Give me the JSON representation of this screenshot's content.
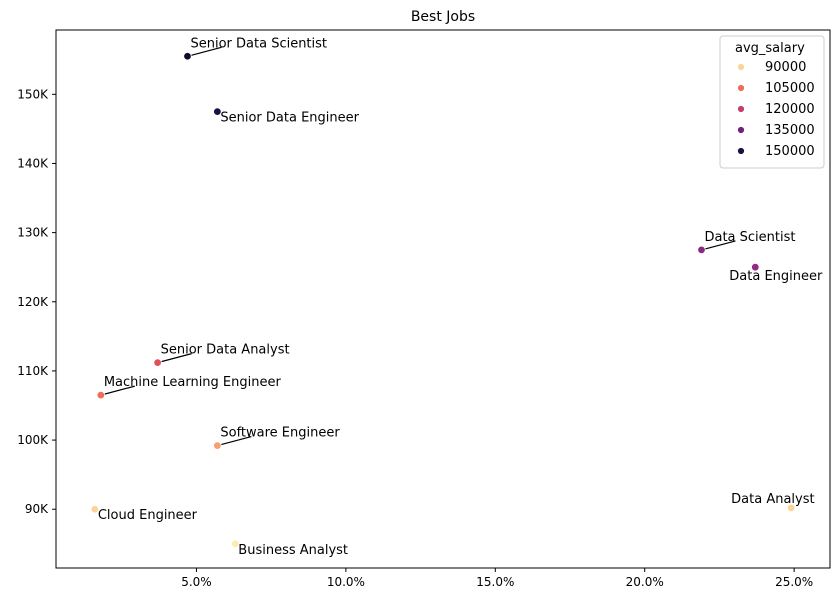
{
  "chart_data": {
    "type": "scatter",
    "title": "Best Jobs",
    "xlabel": "",
    "ylabel": "",
    "x_unit": "percent",
    "xlim": [
      0.3,
      26.2
    ],
    "ylim": [
      81500,
      159300
    ],
    "x_ticks": [
      5,
      10,
      15,
      20,
      25
    ],
    "x_tick_labels": [
      "5.0%",
      "10.0%",
      "15.0%",
      "20.0%",
      "25.0%"
    ],
    "y_ticks": [
      90000,
      100000,
      110000,
      120000,
      130000,
      140000,
      150000
    ],
    "y_tick_labels": [
      "90K",
      "100K",
      "110K",
      "120K",
      "130K",
      "140K",
      "150K"
    ],
    "grid": false,
    "legend": {
      "title": "avg_salary",
      "placement": "top-right",
      "entries": [
        {
          "label": "90000",
          "color": "#fcd49a"
        },
        {
          "label": "105000",
          "color": "#ef6e58"
        },
        {
          "label": "120000",
          "color": "#c33f72"
        },
        {
          "label": "135000",
          "color": "#711f81"
        },
        {
          "label": "150000",
          "color": "#1a1042"
        }
      ]
    },
    "points": [
      {
        "label": "Senior Data Scientist",
        "x": 4.7,
        "y": 155500,
        "color": "#0e0b2b",
        "label_pos": "above-right"
      },
      {
        "label": "Senior Data Engineer",
        "x": 5.7,
        "y": 147500,
        "color": "#1c1044",
        "label_pos": "below-right"
      },
      {
        "label": "Data Scientist",
        "x": 21.9,
        "y": 127500,
        "color": "#8a2981",
        "label_pos": "above-right"
      },
      {
        "label": "Data Engineer",
        "x": 23.7,
        "y": 125000,
        "color": "#94297f",
        "label_pos": "below-left"
      },
      {
        "label": "Senior Data Analyst",
        "x": 3.7,
        "y": 111200,
        "color": "#e34e5c",
        "label_pos": "above-right"
      },
      {
        "label": "Machine Learning Engineer",
        "x": 1.8,
        "y": 106500,
        "color": "#ef6e58",
        "label_pos": "above-right"
      },
      {
        "label": "Software Engineer",
        "x": 5.7,
        "y": 99200,
        "color": "#f89e70",
        "label_pos": "above-right"
      },
      {
        "label": "Cloud Engineer",
        "x": 1.6,
        "y": 90000,
        "color": "#fcd49a",
        "label_pos": "below-right"
      },
      {
        "label": "Business Analyst",
        "x": 6.3,
        "y": 85000,
        "color": "#fcecb0",
        "label_pos": "below-right"
      },
      {
        "label": "Data Analyst",
        "x": 24.9,
        "y": 90200,
        "color": "#fcd49a",
        "label_pos": "above-left"
      }
    ]
  }
}
